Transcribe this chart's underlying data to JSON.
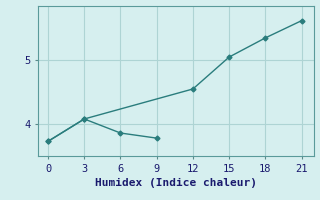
{
  "xlabel": "Humidex (Indice chaleur)",
  "background_color": "#d6efef",
  "grid_color": "#aed4d4",
  "line_color": "#2a7d7d",
  "line1_x": [
    0,
    3,
    12,
    15,
    18,
    21
  ],
  "line1_y": [
    3.73,
    4.08,
    4.55,
    5.05,
    5.35,
    5.62
  ],
  "line2_x": [
    0,
    3,
    6,
    9
  ],
  "line2_y": [
    3.73,
    4.08,
    3.86,
    3.78
  ],
  "xlim": [
    -0.8,
    22.0
  ],
  "ylim": [
    3.5,
    5.85
  ],
  "xticks": [
    0,
    3,
    6,
    9,
    12,
    15,
    18,
    21
  ],
  "yticks": [
    4,
    5
  ],
  "marker": "D",
  "markersize": 2.5,
  "linewidth": 1.0,
  "xlabel_fontsize": 8,
  "tick_fontsize": 7.5
}
